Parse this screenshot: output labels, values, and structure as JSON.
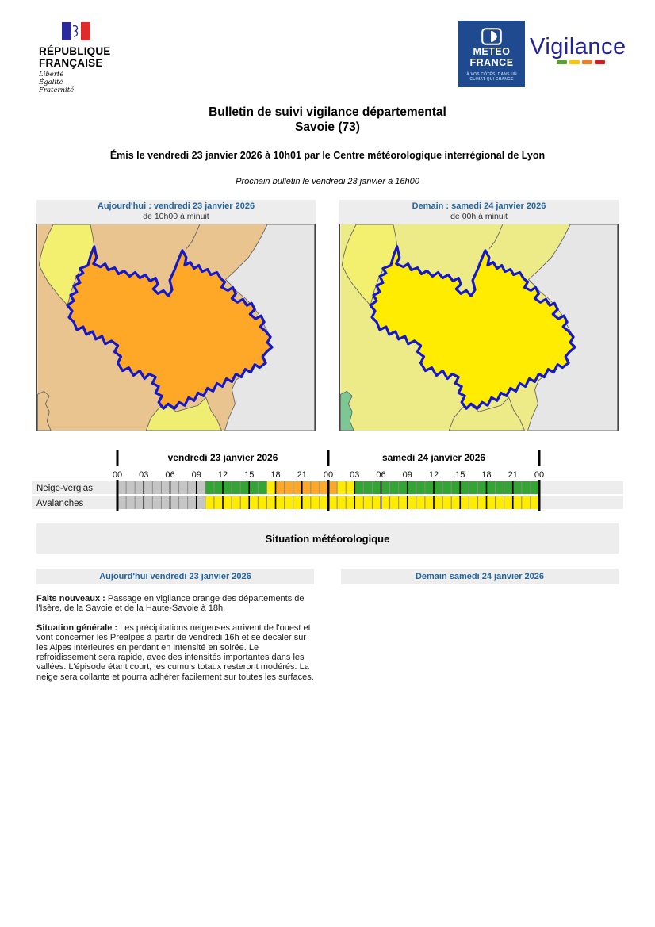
{
  "header": {
    "rf_logo": {
      "line1": "RÉPUBLIQUE",
      "line2": "FRANÇAISE",
      "motto1": "Liberté",
      "motto2": "Égalité",
      "motto3": "Fraternité"
    },
    "mf_logo": {
      "name1": "METEO",
      "name2": "FRANCE",
      "tag1": "À VOS CÔTÉS, DANS UN",
      "tag2": "CLIMAT QUI CHANGE",
      "bg": "#1f4a8f"
    },
    "vigilance_logo": {
      "text": "Vigilance",
      "color": "#22229b",
      "dash_green": "#55a32d",
      "dash_yellow": "#ffc400",
      "dash_orange": "#ef7d25",
      "dash_red": "#d31c1c"
    }
  },
  "title": {
    "line1": "Bulletin de suivi vigilance départemental",
    "line2": "Savoie (73)",
    "emission": "Émis le vendredi 23 janvier 2026 à 10h01 par le Centre météorologique interrégional de Lyon",
    "next_bulletin": "Prochain bulletin le vendredi 23 janvier à 16h00"
  },
  "maps": {
    "today": {
      "title": "Aujourd'hui : vendredi 23 janvier 2026",
      "subtitle": "de 10h00 à minuit",
      "colors": {
        "dept": "#ffa827",
        "bg": "#e9c48f",
        "wedge": "#f2f06e",
        "gray": "#e6e6e6",
        "bottom": "#f0ee72",
        "patch": "#e9c48f"
      }
    },
    "tomorrow": {
      "title": "Demain : samedi 24 janvier 2026",
      "subtitle": "de 00h à minuit",
      "colors": {
        "dept": "#ffec00",
        "bg": "#edeb88",
        "wedge": "#f2f06e",
        "gray": "#e6e6e6",
        "bottom": "#edeb88",
        "patch": "#7cc794"
      }
    },
    "border_blue": "#1418c8"
  },
  "timeline": {
    "days": [
      "vendredi 23 janvier 2026",
      "samedi 24 janvier 2026"
    ],
    "hour_labels": [
      "00",
      "03",
      "06",
      "09",
      "12",
      "15",
      "18",
      "21",
      "00",
      "03",
      "06",
      "09",
      "12",
      "15",
      "18",
      "21",
      "00"
    ],
    "rows": [
      {
        "label": "Neige-verglas",
        "icon": "snow-ice",
        "segments": [
          {
            "from": 0,
            "to": 10,
            "color": "#c5c5c5"
          },
          {
            "from": 10,
            "to": 17,
            "color": "#33a532"
          },
          {
            "from": 17,
            "to": 18,
            "color": "#ffec00"
          },
          {
            "from": 18,
            "to": 25,
            "color": "#ffa827"
          },
          {
            "from": 25,
            "to": 27,
            "color": "#ffec00"
          },
          {
            "from": 27,
            "to": 48,
            "color": "#33a532"
          }
        ]
      },
      {
        "label": "Avalanches",
        "icon": "avalanche",
        "segments": [
          {
            "from": 0,
            "to": 10,
            "color": "#c5c5c5"
          },
          {
            "from": 10,
            "to": 48,
            "color": "#ffec00"
          }
        ]
      }
    ]
  },
  "situation": {
    "header": "Situation météorologique",
    "columns": [
      {
        "header": "Aujourd'hui vendredi 23 janvier 2026",
        "paragraphs": [
          {
            "lead": "Faits nouveaux :",
            "body": "Passage en vigilance orange des départements de l'Isère, de la Savoie et de la Haute-Savoie à 18h."
          },
          {
            "lead": "Situation générale :",
            "body": "Les précipitations neigeuses arrivent de l'ouest et vont concerner les Préalpes à partir de vendredi 16h et se décaler sur les Alpes intérieures en perdant en intensité en soirée. Le refroidissement sera rapide, avec des intensités importantes dans les vallées. L'épisode étant court, les cumuls totaux resteront modérés. La neige sera collante et pourra adhérer facilement sur toutes les surfaces."
          }
        ]
      },
      {
        "header": "Demain samedi 24 janvier 2026",
        "paragraphs": []
      }
    ]
  }
}
